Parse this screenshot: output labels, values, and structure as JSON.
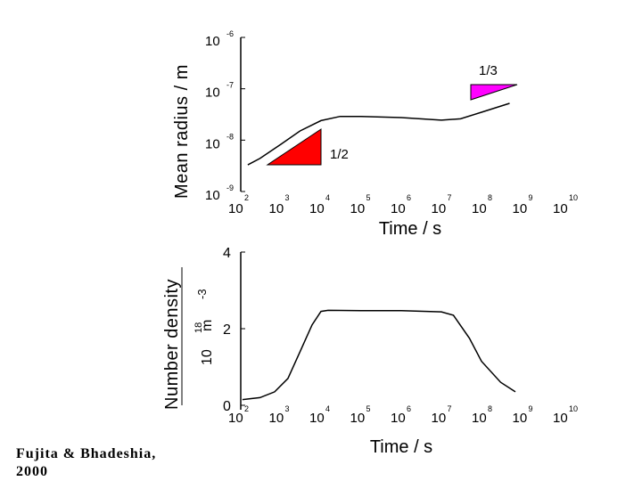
{
  "citation": {
    "line1": "Fujita & Bhadeshia,",
    "line2": "2000"
  },
  "colors": {
    "red_triangle": "#ff0000",
    "magenta_triangle": "#ff00ff",
    "ink": "#000000"
  },
  "chart_data": [
    {
      "type": "line",
      "name": "mean-radius",
      "xscale": "log",
      "yscale": "log",
      "xlim": [
        100,
        10000000000
      ],
      "ylim": [
        1e-09,
        1e-06
      ],
      "ylabel": "Mean radius / m",
      "xlabel": "Time / s",
      "x_ticks": [
        {
          "base": "10",
          "exp": "2"
        },
        {
          "base": "10",
          "exp": "3"
        },
        {
          "base": "10",
          "exp": "4"
        },
        {
          "base": "10",
          "exp": "5"
        },
        {
          "base": "10",
          "exp": "6"
        },
        {
          "base": "10",
          "exp": "7"
        },
        {
          "base": "10",
          "exp": "8"
        },
        {
          "base": "10",
          "exp": "9"
        },
        {
          "base": "10",
          "exp": "10"
        }
      ],
      "y_ticks": [
        {
          "base": "10",
          "exp": "-6"
        },
        {
          "base": "10",
          "exp": "-7"
        },
        {
          "base": "10",
          "exp": "-8"
        },
        {
          "base": "10",
          "exp": "-9"
        }
      ],
      "x": [
        150,
        300,
        1000,
        3000,
        10000,
        30000,
        100000,
        1000000,
        10000000,
        30000000,
        100000000,
        500000000
      ],
      "y": [
        3.3e-09,
        4.4e-09,
        8.3e-09,
        1.51e-08,
        2.4e-08,
        2.9e-08,
        2.9e-08,
        2.75e-08,
        2.45e-08,
        2.6e-08,
        3.5e-08,
        5.2e-08
      ],
      "annotations": [
        {
          "label": "1/2",
          "slope": "1/2",
          "color": "red"
        },
        {
          "label": "1/3",
          "slope": "1/3",
          "color": "magenta"
        }
      ]
    },
    {
      "type": "line",
      "name": "number-density",
      "xscale": "log",
      "xlim": [
        100,
        10000000000
      ],
      "ylim": [
        0,
        4
      ],
      "ylabel": "Number density",
      "yunit": {
        "base": "10",
        "exp": "18",
        "unit": "m",
        "unit_exp": "-3"
      },
      "xlabel": "Time / s",
      "x_ticks": [
        {
          "base": "10",
          "exp": "2"
        },
        {
          "base": "10",
          "exp": "3"
        },
        {
          "base": "10",
          "exp": "4"
        },
        {
          "base": "10",
          "exp": "5"
        },
        {
          "base": "10",
          "exp": "6"
        },
        {
          "base": "10",
          "exp": "7"
        },
        {
          "base": "10",
          "exp": "8"
        },
        {
          "base": "10",
          "exp": "9"
        },
        {
          "base": "10",
          "exp": "10"
        }
      ],
      "y_ticks": [
        "0",
        "2",
        "4"
      ],
      "x": [
        110,
        300,
        700,
        1500,
        3000,
        6000,
        10000,
        15000,
        100000,
        1000000,
        10000000,
        20000000,
        50000000,
        100000000,
        300000000,
        700000000
      ],
      "y": [
        0.15,
        0.2,
        0.35,
        0.7,
        1.4,
        2.1,
        2.45,
        2.48,
        2.47,
        2.47,
        2.44,
        2.35,
        1.75,
        1.15,
        0.6,
        0.35
      ]
    }
  ]
}
